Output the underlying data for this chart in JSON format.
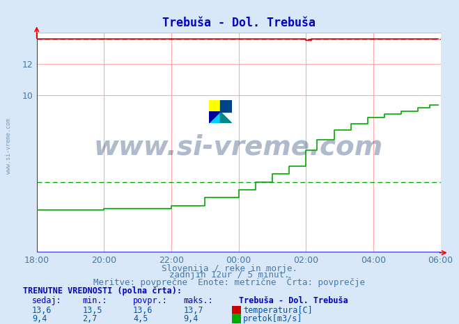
{
  "title": "Trebuša - Dol. Trebuša",
  "title_color": "#0000cc",
  "bg_color": "#d8e8f8",
  "plot_bg_color": "#ffffff",
  "grid_color": "#ffaaaa",
  "xlabel_text1": "Slovenija / reke in morje.",
  "xlabel_text2": "zadnjih 12ur / 5 minut.",
  "xlabel_text3": "Meritve: povprečne  Enote: metrične  Črta: povprečje",
  "xlabel_color": "#4477aa",
  "xtick_labels": [
    "18:00",
    "20:00",
    "22:00",
    "00:00",
    "02:00",
    "04:00",
    "06:00"
  ],
  "xtick_values": [
    0,
    24,
    48,
    72,
    96,
    120,
    144
  ],
  "ymin": 0,
  "ymax": 14,
  "xmin": 0,
  "xmax": 144,
  "temp_color": "#cc0000",
  "flow_color": "#00aa00",
  "blue_line_color": "#0000ff",
  "temp_value": 13.6,
  "temp_min": 13.5,
  "temp_max": 13.7,
  "temp_avg": 13.6,
  "flow_value": 9.4,
  "flow_min": 2.7,
  "flow_max": 9.4,
  "flow_avg": 4.5,
  "watermark": "www.si-vreme.com",
  "watermark_color": "#1a3a6a",
  "footer_line1": "TRENUTNE VREDNOSTI (polna črta):",
  "footer_headers": [
    "sedaj:",
    "min.:",
    "povpr.:",
    "maks.:"
  ],
  "footer_station": "Trebuša - Dol. Trebuša",
  "legend_temp_label": "temperatura[C]",
  "legend_flow_label": "pretok[m3/s]",
  "footer_text_color": "#0055aa",
  "footer_label_color": "#0000cc"
}
